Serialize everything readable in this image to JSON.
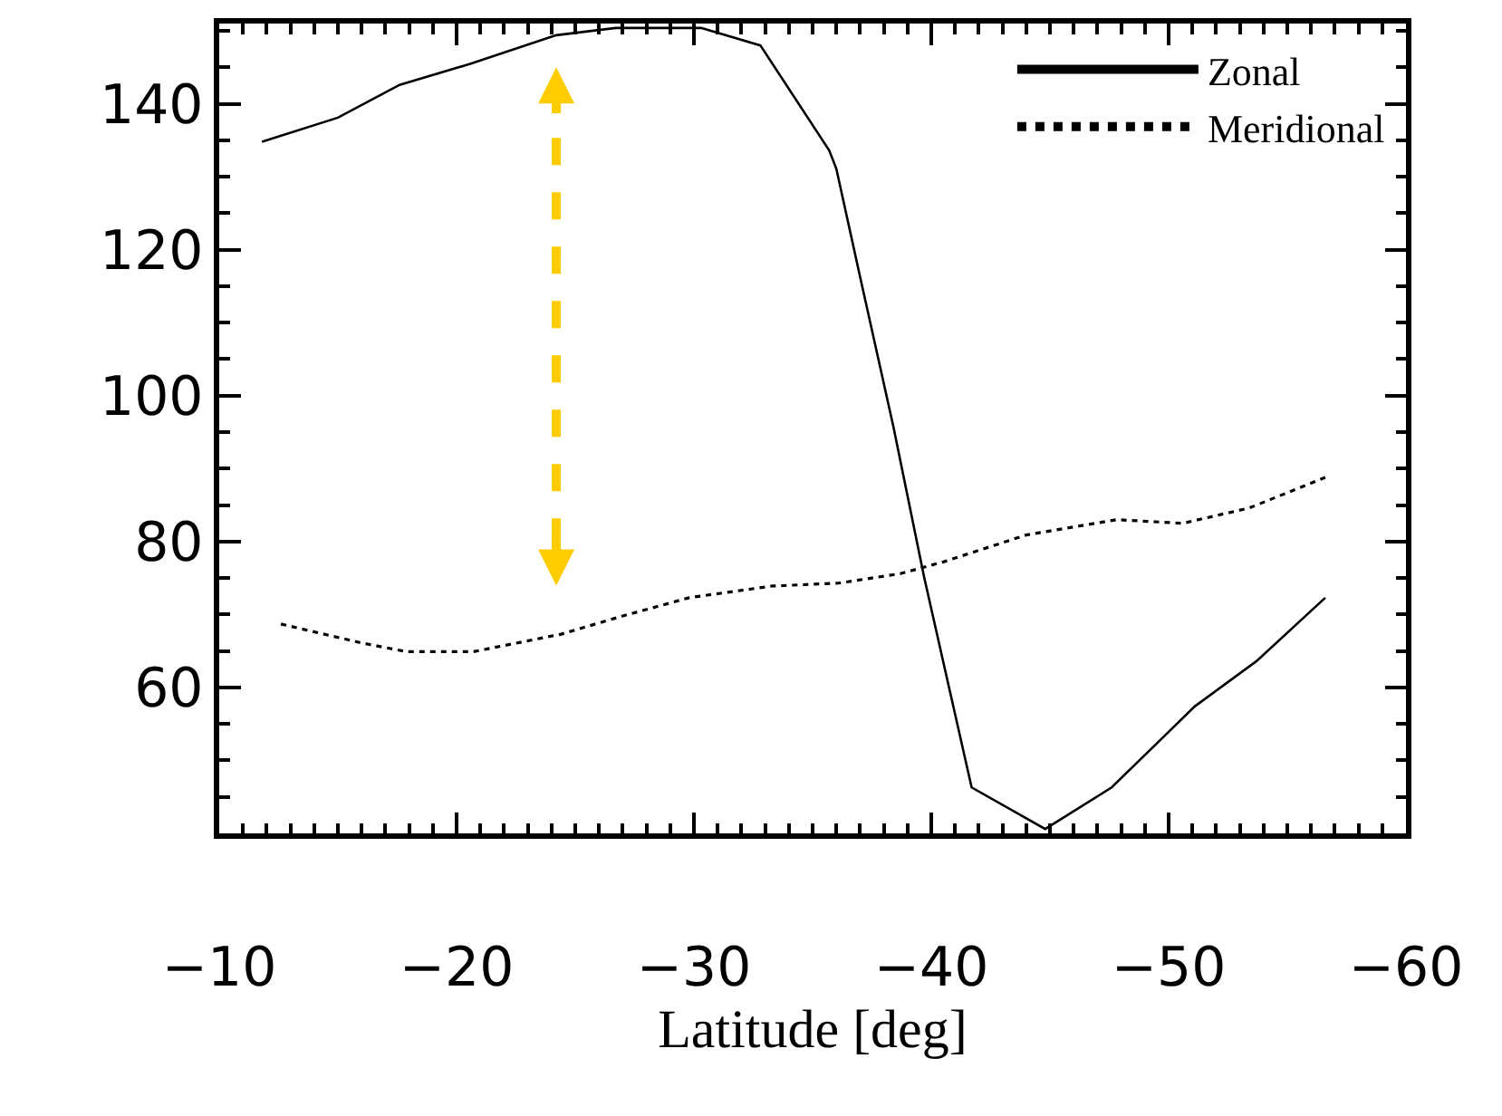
{
  "chart_data": {
    "type": "line",
    "xlabel": "Latitude [deg]",
    "xlim": [
      -10,
      -60
    ],
    "xticks": [
      -10,
      -20,
      -30,
      -40,
      -50,
      -60
    ],
    "ylim": [
      40,
      151
    ],
    "yticks": [
      60,
      80,
      100,
      120,
      140
    ],
    "legend": "top right",
    "marker": "none",
    "series": [
      {
        "name": "Zonal",
        "color": "#000000",
        "line_style": "solid",
        "x": [
          -11.8,
          -15.0,
          -17.6,
          -20.6,
          -24.2,
          -26.7,
          -30.3,
          -32.8,
          -35.7,
          -36.0,
          -37.0,
          -38.4,
          -39.7,
          -41.7,
          -44.8,
          -47.6,
          -51.1,
          -53.7,
          -56.6
        ],
        "values": [
          134.8,
          138.1,
          142.6,
          145.5,
          149.4,
          150.4,
          150.4,
          148,
          133.6,
          131.1,
          116.3,
          95.8,
          75.1,
          46.3,
          40.6,
          46.3,
          57.4,
          63.6,
          72.3
        ]
      },
      {
        "name": "Meridional",
        "color": "#000000",
        "line_style": "dotted",
        "x": [
          -12.6,
          -16.0,
          -17.9,
          -20.7,
          -24.4,
          -27.0,
          -29.8,
          -33.3,
          -36.1,
          -38.7,
          -40.5,
          -44.0,
          -47.8,
          -50.6,
          -53.4,
          -56.6
        ],
        "values": [
          68.7,
          66.1,
          64.9,
          64.9,
          67.3,
          69.8,
          72.3,
          73.9,
          74.3,
          75.6,
          77.2,
          80.9,
          83,
          82.5,
          84.6,
          88.8
        ]
      }
    ]
  }
}
